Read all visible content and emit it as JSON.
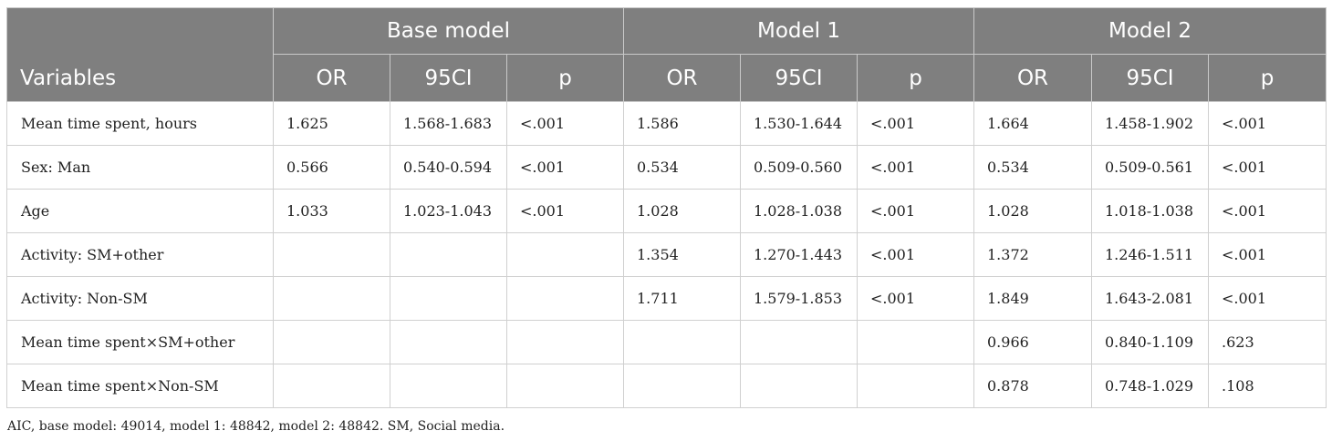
{
  "table": {
    "groups": [
      "Base model",
      "Model 1",
      "Model 2"
    ],
    "first_column_header": "Variables",
    "subheaders": [
      "OR",
      "95CI",
      "p",
      "OR",
      "95CI",
      "p",
      "OR",
      "95CI",
      "p"
    ],
    "rows": [
      {
        "variable": "Mean time spent, hours",
        "cells": [
          "1.625",
          "1.568-1.683",
          "<.001",
          "1.586",
          "1.530-1.644",
          "<.001",
          "1.664",
          "1.458-1.902",
          "<.001"
        ]
      },
      {
        "variable": "Sex: Man",
        "cells": [
          "0.566",
          "0.540-0.594",
          "<.001",
          "0.534",
          "0.509-0.560",
          "<.001",
          "0.534",
          "0.509-0.561",
          "<.001"
        ]
      },
      {
        "variable": "Age",
        "cells": [
          "1.033",
          "1.023-1.043",
          "<.001",
          "1.028",
          "1.028-1.038",
          "<.001",
          "1.028",
          "1.018-1.038",
          "<.001"
        ]
      },
      {
        "variable": "Activity: SM+other",
        "cells": [
          "",
          "",
          "",
          "1.354",
          "1.270-1.443",
          "<.001",
          "1.372",
          "1.246-1.511",
          "<.001"
        ]
      },
      {
        "variable": "Activity: Non-SM",
        "cells": [
          "",
          "",
          "",
          "1.711",
          "1.579-1.853",
          "<.001",
          "1.849",
          "1.643-2.081",
          "<.001"
        ]
      },
      {
        "variable": "Mean time spent×SM+other",
        "cells": [
          "",
          "",
          "",
          "",
          "",
          "",
          "0.966",
          "0.840-1.109",
          ".623"
        ]
      },
      {
        "variable": "Mean time spent×Non-SM",
        "cells": [
          "",
          "",
          "",
          "",
          "",
          "",
          "0.878",
          "0.748-1.029",
          ".108"
        ]
      }
    ]
  },
  "footnote": "AIC, base model: 49014, model 1: 48842, model 2: 48842. SM, Social media."
}
